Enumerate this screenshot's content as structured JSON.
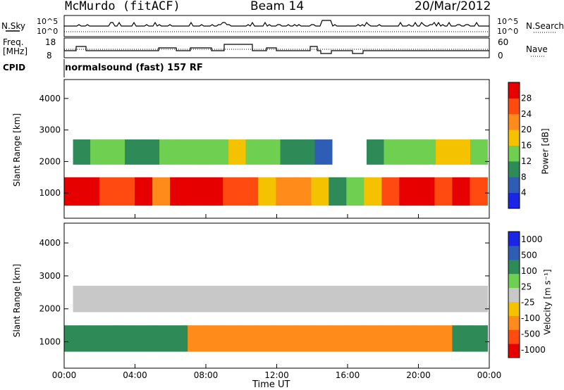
{
  "header": {
    "station": "McMurdo (fitACF)",
    "beam": "Beam 14",
    "date": "20/Mar/2012"
  },
  "status": {
    "nsky_label": "N.Sky",
    "nsky_ticks": [
      "10^5",
      "10^0"
    ],
    "nsearch_label": "N.Search",
    "nsearch_ticks": [
      "10^5",
      "10^0"
    ],
    "freq_label": "Freq.",
    "freq_unit": "[MHz]",
    "freq_ticks": [
      "18",
      "8"
    ],
    "nave_label": "Nave",
    "nave_ticks": [
      "60",
      "0"
    ],
    "cpid_label": "CPID",
    "cpid_value": "normalsound (fast) 157 RF"
  },
  "colors": {
    "power": [
      "#1a25e6",
      "#2f5db6",
      "#2e8b57",
      "#6fcf50",
      "#f5c200",
      "#ff8c1a",
      "#ff4a10",
      "#e60000"
    ],
    "velocity": [
      "#e60000",
      "#ff4a10",
      "#ff8c1a",
      "#f5c200",
      "#c8c8c8",
      "#6fcf50",
      "#2e8b57",
      "#2f5db6",
      "#1a25e6"
    ]
  },
  "chart_data": [
    {
      "type": "heatmap",
      "title": "",
      "ylabel": "Slant Range [km]",
      "xlabel": "",
      "x_ticks": [
        "00:00",
        "04:00",
        "08:00",
        "12:00",
        "16:00",
        "20:00",
        "00:00"
      ],
      "y_ticks": [
        "1000",
        "2000",
        "3000",
        "4000"
      ],
      "ylim": [
        200,
        4600
      ],
      "colorbar": {
        "label": "Power [dB]",
        "ticks": [
          "4",
          "8",
          "12",
          "16",
          "20",
          "24",
          "28"
        ],
        "range": [
          0,
          32
        ]
      },
      "bands": [
        {
          "name": "main",
          "x_start_h": 0.0,
          "x_end_h": 23.9,
          "range_km": [
            600,
            1500
          ],
          "values": [
            28,
            30,
            26,
            24,
            28,
            22,
            28,
            30,
            28,
            26,
            24,
            18,
            20,
            22,
            18,
            10,
            12,
            18,
            26,
            30,
            28,
            26,
            28,
            26
          ]
        },
        {
          "name": "upper",
          "x_start_h": 0.5,
          "x_end_h": 23.9,
          "range_km": [
            1900,
            2700
          ],
          "values": [
            10,
            12,
            14,
            8,
            10,
            12,
            14,
            12,
            14,
            16,
            14,
            12,
            10,
            8,
            6,
            0,
            0,
            8,
            12,
            14,
            12,
            16,
            18,
            14
          ]
        }
      ]
    },
    {
      "type": "heatmap",
      "title": "",
      "ylabel": "Slant Range [km]",
      "xlabel": "Time UT",
      "x_ticks": [
        "00:00",
        "04:00",
        "08:00",
        "12:00",
        "16:00",
        "20:00",
        "00:00"
      ],
      "y_ticks": [
        "1000",
        "2000",
        "3000",
        "4000"
      ],
      "ylim": [
        200,
        4600
      ],
      "colorbar": {
        "label": "Velocity [m s⁻¹]",
        "ticks": [
          "1000",
          "500",
          "100",
          "25",
          "-25",
          "-100",
          "-500",
          "-1000"
        ]
      },
      "bands": [
        {
          "name": "main",
          "x_start_h": 0.0,
          "x_end_h": 23.9,
          "range_km": [
            700,
            1500
          ],
          "values": [
            300,
            300,
            300,
            300,
            300,
            250,
            200,
            -100,
            -150,
            -150,
            -200,
            -200,
            -250,
            -300,
            -300,
            -200,
            -250,
            -300,
            -300,
            -250,
            -300,
            -200,
            200,
            200
          ]
        },
        {
          "name": "upper",
          "x_start_h": 0.5,
          "x_end_h": 23.9,
          "range_km": [
            1900,
            2700
          ],
          "values": [
            0,
            0,
            0,
            0,
            0,
            0,
            0,
            0,
            0,
            0,
            0,
            0,
            0,
            0,
            0,
            0,
            0,
            0,
            0,
            0,
            0,
            0,
            0,
            0
          ]
        }
      ]
    }
  ]
}
